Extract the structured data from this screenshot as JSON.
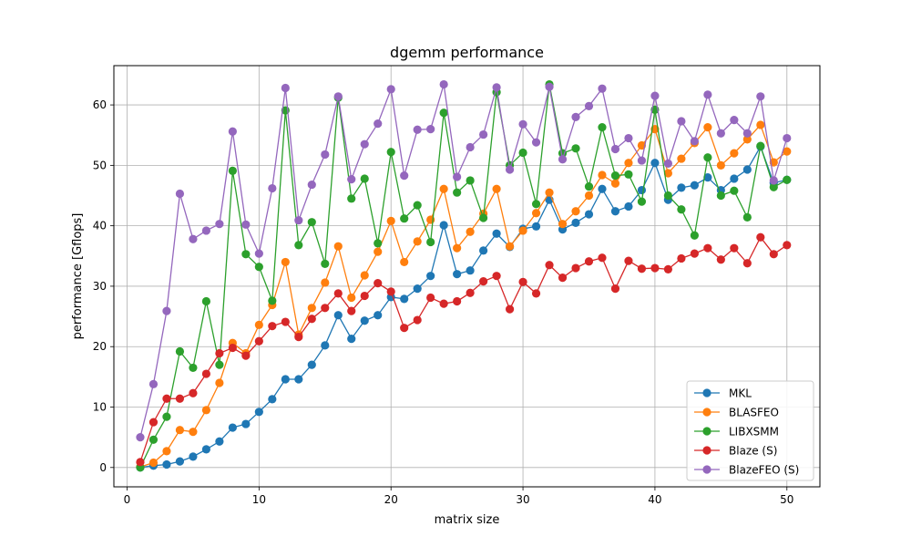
{
  "chart_data": {
    "type": "line",
    "title": "dgemm performance",
    "xlabel": "matrix size",
    "ylabel": "performance [Gflops]",
    "xlim": [
      -1,
      52.5
    ],
    "ylim": [
      -3.2,
      66.5
    ],
    "xticks": [
      0,
      10,
      20,
      30,
      40,
      50
    ],
    "yticks": [
      0,
      10,
      20,
      30,
      40,
      50,
      60
    ],
    "grid": true,
    "legend_position": "bottom-right",
    "x": [
      1,
      2,
      3,
      4,
      5,
      6,
      7,
      8,
      9,
      10,
      11,
      12,
      13,
      14,
      15,
      16,
      17,
      18,
      19,
      20,
      21,
      22,
      23,
      24,
      25,
      26,
      27,
      28,
      29,
      30,
      31,
      32,
      33,
      34,
      35,
      36,
      37,
      38,
      39,
      40,
      41,
      42,
      43,
      44,
      45,
      46,
      47,
      48,
      49,
      50
    ],
    "series": [
      {
        "name": "MKL",
        "color": "#1f77b4",
        "values": [
          0.0,
          0.3,
          0.5,
          1.0,
          1.8,
          3.0,
          4.3,
          6.6,
          7.2,
          9.2,
          11.3,
          14.6,
          14.6,
          17.0,
          20.2,
          25.2,
          21.3,
          24.3,
          25.2,
          28.2,
          27.9,
          29.6,
          31.7,
          40.1,
          32.0,
          32.6,
          35.9,
          38.7,
          36.5,
          39.5,
          39.9,
          44.3,
          39.4,
          40.5,
          41.9,
          46.1,
          42.4,
          43.2,
          45.9,
          50.4,
          44.3,
          46.3,
          46.7,
          48.0,
          45.9,
          47.8,
          49.3,
          53.1,
          47.1,
          47.6
        ]
      },
      {
        "name": "BLASFEO",
        "color": "#ff7f0e",
        "values": [
          0.1,
          0.8,
          2.7,
          6.2,
          5.9,
          9.5,
          14.0,
          20.6,
          18.9,
          23.6,
          26.9,
          34.0,
          22.0,
          26.4,
          30.6,
          36.6,
          28.1,
          31.8,
          35.7,
          40.8,
          34.0,
          37.4,
          41.0,
          46.1,
          36.3,
          39.0,
          42.0,
          46.1,
          36.6,
          39.2,
          42.1,
          45.5,
          40.3,
          42.4,
          45.0,
          48.4,
          47.0,
          50.4,
          53.3,
          56.0,
          48.7,
          51.1,
          53.7,
          56.3,
          50.0,
          52.0,
          54.3,
          56.7,
          50.5,
          52.3
        ]
      },
      {
        "name": "LIBXSMM",
        "color": "#2ca02c",
        "values": [
          0.0,
          4.6,
          8.4,
          19.2,
          16.5,
          27.5,
          17.0,
          49.1,
          35.3,
          33.2,
          27.6,
          59.1,
          36.8,
          40.6,
          33.7,
          61.2,
          44.5,
          47.8,
          37.1,
          52.2,
          41.2,
          43.4,
          37.3,
          58.7,
          45.5,
          47.5,
          41.3,
          62.1,
          50.0,
          52.1,
          43.6,
          63.4,
          52.0,
          52.8,
          46.5,
          56.3,
          48.3,
          48.5,
          44.0,
          59.2,
          45.0,
          42.7,
          38.4,
          51.3,
          45.0,
          45.8,
          41.4,
          53.2,
          46.4,
          47.6
        ]
      },
      {
        "name": "Blaze (S)",
        "color": "#d62728",
        "values": [
          0.9,
          7.5,
          11.4,
          11.4,
          12.3,
          15.5,
          18.9,
          19.8,
          18.5,
          20.9,
          23.4,
          24.1,
          21.6,
          24.6,
          26.4,
          28.8,
          25.9,
          28.4,
          30.5,
          29.1,
          23.1,
          24.4,
          28.1,
          27.1,
          27.5,
          28.9,
          30.8,
          31.7,
          26.2,
          30.7,
          28.8,
          33.5,
          31.4,
          33.0,
          34.1,
          34.7,
          29.6,
          34.2,
          32.9,
          33.0,
          32.8,
          34.6,
          35.4,
          36.3,
          34.4,
          36.3,
          33.8,
          38.1,
          35.3,
          36.8
        ]
      },
      {
        "name": "BlazeFEO (S)",
        "color": "#9467bd",
        "values": [
          5.0,
          13.8,
          25.9,
          45.3,
          37.8,
          39.2,
          40.3,
          55.6,
          40.2,
          35.4,
          46.2,
          62.8,
          40.9,
          46.8,
          51.8,
          61.4,
          47.7,
          53.5,
          56.9,
          62.6,
          48.3,
          55.9,
          56.0,
          63.4,
          48.1,
          53.0,
          55.1,
          62.9,
          49.3,
          56.8,
          53.8,
          63.0,
          51.0,
          58.0,
          59.8,
          62.7,
          52.7,
          54.5,
          50.8,
          61.5,
          50.3,
          57.3,
          54.0,
          61.7,
          55.3,
          57.5,
          55.3,
          61.4,
          47.5,
          54.5
        ]
      }
    ]
  }
}
